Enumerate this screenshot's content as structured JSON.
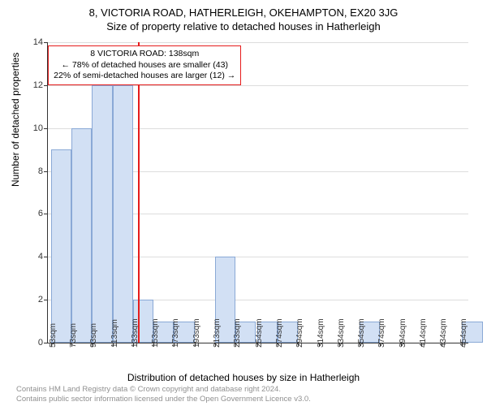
{
  "title1": "8, VICTORIA ROAD, HATHERLEIGH, OKEHAMPTON, EX20 3JG",
  "title2": "Size of property relative to detached houses in Hatherleigh",
  "ylabel": "Number of detached properties",
  "xlabel": "Distribution of detached houses by size in Hatherleigh",
  "footer1": "Contains HM Land Registry data © Crown copyright and database right 2024.",
  "footer2": "Contains public sector information licensed under the Open Government Licence v3.0.",
  "annotation": {
    "line1": "8 VICTORIA ROAD: 138sqm",
    "line2": "← 78% of detached houses are smaller (43)",
    "line3": "22% of semi-detached houses are larger (12) →"
  },
  "chart": {
    "type": "histogram",
    "bar_fill": "#d2e0f4",
    "bar_stroke": "#8aa9d6",
    "grid_color": "#dddddd",
    "axis_color": "#333333",
    "marker_color": "#e61c1c",
    "background": "#ffffff",
    "ylim": [
      0,
      14
    ],
    "ytick_step": 2,
    "xlim": [
      50,
      460
    ],
    "xticks": [
      53,
      73,
      93,
      113,
      133,
      153,
      173,
      193,
      213,
      233,
      254,
      274,
      294,
      314,
      334,
      354,
      374,
      394,
      414,
      434,
      454
    ],
    "bar_width_sqm": 20,
    "bars": [
      {
        "x_start": 53,
        "value": 9
      },
      {
        "x_start": 73,
        "value": 10
      },
      {
        "x_start": 93,
        "value": 12
      },
      {
        "x_start": 113,
        "value": 12
      },
      {
        "x_start": 133,
        "value": 2
      },
      {
        "x_start": 153,
        "value": 1
      },
      {
        "x_start": 173,
        "value": 1
      },
      {
        "x_start": 213,
        "value": 4
      },
      {
        "x_start": 233,
        "value": 1
      },
      {
        "x_start": 254,
        "value": 1
      },
      {
        "x_start": 274,
        "value": 1
      },
      {
        "x_start": 354,
        "value": 1
      },
      {
        "x_start": 454,
        "value": 1
      }
    ],
    "marker_x": 138
  }
}
